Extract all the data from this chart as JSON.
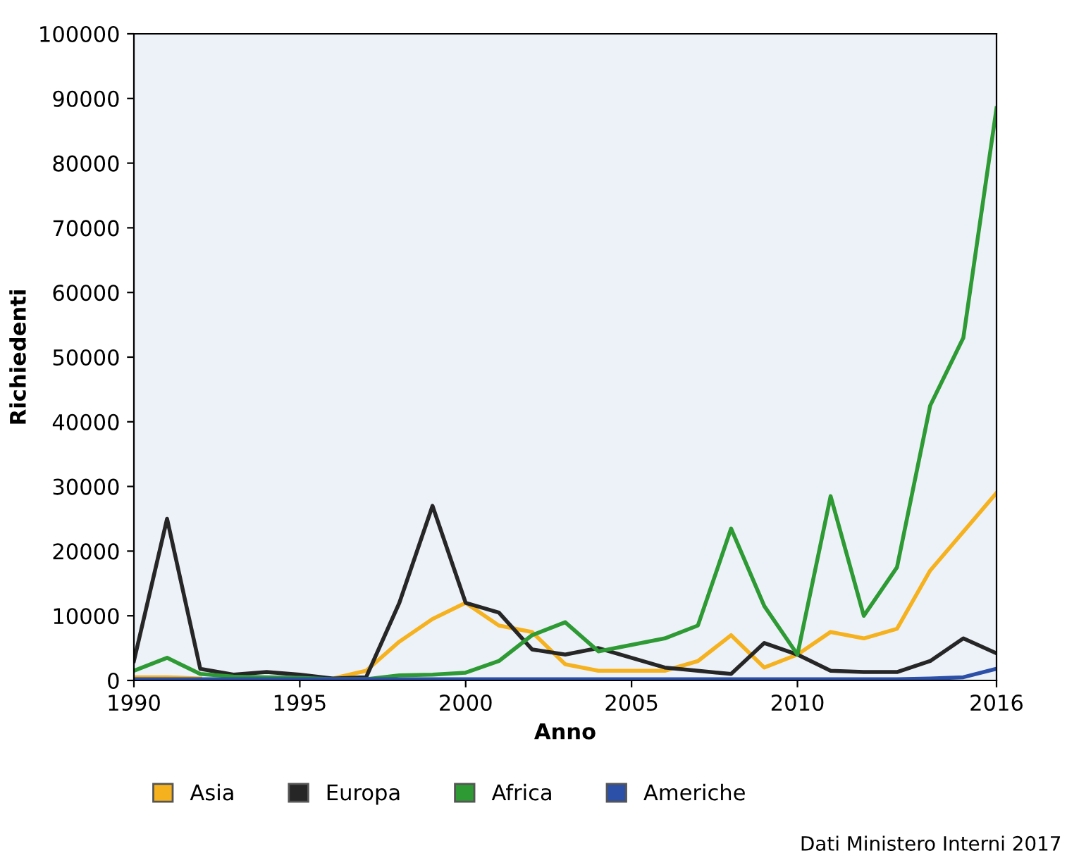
{
  "chart_data": {
    "type": "line",
    "xlabel": "Anno",
    "ylabel": "Richiedenti",
    "x": [
      1990,
      1991,
      1992,
      1993,
      1994,
      1995,
      1996,
      1997,
      1998,
      1999,
      2000,
      2001,
      2002,
      2003,
      2004,
      2005,
      2006,
      2007,
      2008,
      2009,
      2010,
      2011,
      2012,
      2013,
      2014,
      2015,
      2016
    ],
    "series": [
      {
        "name": "Asia",
        "color": "#f5b21e",
        "values": [
          500,
          500,
          300,
          null,
          null,
          null,
          300,
          1500,
          6000,
          9500,
          12000,
          8500,
          7500,
          2500,
          1500,
          1500,
          1500,
          3000,
          7000,
          2000,
          4000,
          7500,
          6500,
          8000,
          17000,
          23000,
          29000
        ]
      },
      {
        "name": "Europa",
        "color": "#262626",
        "values": [
          3000,
          25000,
          1800,
          900,
          1300,
          900,
          300,
          500,
          12000,
          27000,
          12000,
          10500,
          4800,
          4000,
          5000,
          3500,
          2000,
          1500,
          1000,
          5800,
          4000,
          1500,
          1300,
          1300,
          3000,
          6500,
          4200
        ]
      },
      {
        "name": "Africa",
        "color": "#2e9a34",
        "values": [
          1500,
          3500,
          1000,
          600,
          500,
          400,
          200,
          200,
          800,
          900,
          1200,
          3000,
          7000,
          9000,
          4500,
          5500,
          6500,
          8500,
          23500,
          11500,
          4000,
          28500,
          10000,
          17500,
          42500,
          53000,
          88500
        ]
      },
      {
        "name": "Americhe",
        "color": "#2c4fa8",
        "values": [
          200,
          200,
          200,
          200,
          200,
          200,
          200,
          200,
          200,
          200,
          200,
          200,
          200,
          200,
          200,
          200,
          200,
          200,
          200,
          200,
          200,
          200,
          200,
          200,
          300,
          500,
          1800
        ]
      }
    ],
    "xlim": [
      1990,
      2016
    ],
    "xticks": [
      1990,
      1995,
      2000,
      2005,
      2010,
      2016
    ],
    "ylim": [
      0,
      100000
    ],
    "yticks": [
      0,
      10000,
      20000,
      30000,
      40000,
      50000,
      60000,
      70000,
      80000,
      90000,
      100000
    ],
    "grid": false,
    "legend": "bottom",
    "marker": "none",
    "line_style": "solid",
    "annotations": [
      "Dati Ministero Interni 2017"
    ]
  }
}
